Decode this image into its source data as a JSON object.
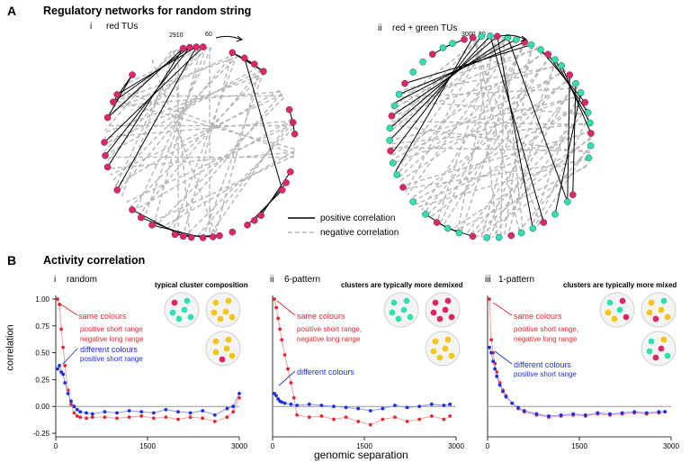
{
  "panel_a": {
    "letter": "A",
    "title": "Regulatory networks for random string",
    "sub_i": {
      "numeral": "i",
      "label": "red TUs",
      "tick_a": "2910",
      "tick_b": "60"
    },
    "sub_ii": {
      "numeral": "ii",
      "label": "red + green TUs",
      "tick_a": "3000",
      "tick_b": "60"
    },
    "legend": {
      "positive": "positive correlation",
      "negative": "negative correlation"
    }
  },
  "panel_b": {
    "letter": "B",
    "title": "Activity correlation",
    "ylabel": "correlation",
    "xlabel": "genomic separation",
    "colors": {
      "same": "#e8262f",
      "different": "#1f2ee0",
      "red_dot": "#e0266b",
      "green_dot": "#2fe0b0",
      "yellow_dot": "#f5c518"
    },
    "sub_i": {
      "numeral": "i",
      "label": "random",
      "cluster_note": "typical cluster composition",
      "same_label": "same colours",
      "same_sub1": "positive short range",
      "same_sub2": "negative long range",
      "diff_label": "different colours",
      "diff_sub": "positive short range"
    },
    "sub_ii": {
      "numeral": "ii",
      "label": "6-pattern",
      "cluster_note": "clusters are typically more demixed",
      "same_label": "same colours",
      "same_sub1": "positive short range,",
      "same_sub2": "negative long range",
      "diff_label": "different colours"
    },
    "sub_iii": {
      "numeral": "iii",
      "label": "1-pattern",
      "cluster_note": "clusters are typically more mixed",
      "same_label": "same colours",
      "same_sub1": "positive short range,",
      "same_sub2": "negative long range",
      "diff_label": "different colours",
      "diff_sub": "positive short range"
    }
  },
  "chart_data": [
    {
      "type": "line",
      "panel": "B i random",
      "xlim": [
        0,
        3000
      ],
      "ylim": [
        -0.25,
        1.0
      ],
      "xticks": [
        "0",
        "1500",
        "3000"
      ],
      "yticks": [
        "1.00",
        "0.75",
        "0.50",
        "0.25",
        "0.00",
        "-0.25"
      ],
      "series": [
        {
          "name": "same colours",
          "x": [
            30,
            60,
            90,
            120,
            150,
            200,
            250,
            300,
            350,
            400,
            500,
            600,
            800,
            1000,
            1200,
            1400,
            1600,
            1800,
            2000,
            2200,
            2400,
            2600,
            2800,
            2900,
            3000
          ],
          "values": [
            1.0,
            0.95,
            0.72,
            0.55,
            0.38,
            0.15,
            0.02,
            -0.06,
            -0.09,
            -0.1,
            -0.11,
            -0.1,
            -0.1,
            -0.11,
            -0.1,
            -0.09,
            -0.11,
            -0.1,
            -0.12,
            -0.1,
            -0.11,
            -0.14,
            -0.1,
            -0.05,
            0.08
          ]
        },
        {
          "name": "different colours",
          "x": [
            30,
            60,
            90,
            120,
            150,
            200,
            250,
            300,
            350,
            400,
            500,
            600,
            800,
            1000,
            1200,
            1400,
            1600,
            1800,
            2000,
            2200,
            2400,
            2600,
            2800,
            2900,
            3000
          ],
          "values": [
            0.35,
            0.38,
            0.32,
            0.3,
            0.22,
            0.12,
            0.05,
            0.0,
            -0.03,
            -0.05,
            -0.06,
            -0.07,
            -0.05,
            -0.06,
            -0.04,
            -0.05,
            -0.06,
            -0.03,
            -0.05,
            -0.06,
            -0.04,
            -0.08,
            -0.02,
            0.0,
            0.12
          ]
        }
      ]
    },
    {
      "type": "line",
      "panel": "B ii 6-pattern",
      "xlim": [
        0,
        3000
      ],
      "ylim": [
        -0.25,
        1.0
      ],
      "xticks": [
        "0",
        "1500",
        "3000"
      ],
      "series": [
        {
          "name": "same colours",
          "x": [
            30,
            60,
            90,
            120,
            150,
            200,
            250,
            300,
            350,
            400,
            600,
            800,
            1000,
            1200,
            1400,
            1600,
            1800,
            2000,
            2200,
            2400,
            2600,
            2800,
            2900
          ],
          "values": [
            1.0,
            0.92,
            0.82,
            0.72,
            0.62,
            0.48,
            0.35,
            0.22,
            0.08,
            -0.08,
            -0.1,
            -0.09,
            -0.12,
            -0.1,
            -0.14,
            -0.17,
            -0.12,
            -0.1,
            -0.14,
            -0.12,
            -0.09,
            -0.12,
            -0.09
          ]
        },
        {
          "name": "different colours",
          "x": [
            30,
            60,
            90,
            120,
            150,
            200,
            300,
            400,
            600,
            800,
            1000,
            1200,
            1400,
            1600,
            1800,
            2000,
            2200,
            2400,
            2600,
            2800,
            2900
          ],
          "values": [
            0.12,
            0.1,
            0.07,
            0.05,
            0.04,
            0.03,
            0.02,
            0.01,
            0.02,
            0.01,
            0.0,
            -0.01,
            -0.02,
            -0.04,
            -0.02,
            0.01,
            -0.01,
            0.0,
            0.02,
            0.01,
            0.02
          ]
        }
      ]
    },
    {
      "type": "line",
      "panel": "B iii 1-pattern",
      "xlim": [
        0,
        3000
      ],
      "ylim": [
        -0.25,
        1.0
      ],
      "xticks": [
        "0",
        "1500",
        "3000"
      ],
      "series": [
        {
          "name": "same colours",
          "x": [
            30,
            60,
            90,
            120,
            150,
            200,
            250,
            300,
            400,
            500,
            600,
            800,
            1000,
            1200,
            1400,
            1600,
            1800,
            2000,
            2200,
            2400,
            2600,
            2800,
            2900
          ],
          "values": [
            1.0,
            0.62,
            0.5,
            0.4,
            0.32,
            0.22,
            0.15,
            0.1,
            0.03,
            -0.02,
            -0.05,
            -0.08,
            -0.1,
            -0.09,
            -0.08,
            -0.09,
            -0.07,
            -0.08,
            -0.07,
            -0.06,
            -0.07,
            -0.06,
            -0.05
          ]
        },
        {
          "name": "different colours",
          "x": [
            30,
            60,
            90,
            120,
            150,
            200,
            250,
            300,
            400,
            500,
            600,
            800,
            1000,
            1200,
            1400,
            1600,
            1800,
            2000,
            2200,
            2400,
            2600,
            2800,
            2900
          ],
          "values": [
            0.55,
            0.5,
            0.42,
            0.35,
            0.28,
            0.2,
            0.14,
            0.09,
            0.03,
            -0.01,
            -0.04,
            -0.07,
            -0.09,
            -0.08,
            -0.07,
            -0.08,
            -0.06,
            -0.07,
            -0.06,
            -0.05,
            -0.06,
            -0.05,
            -0.05
          ]
        }
      ]
    }
  ]
}
